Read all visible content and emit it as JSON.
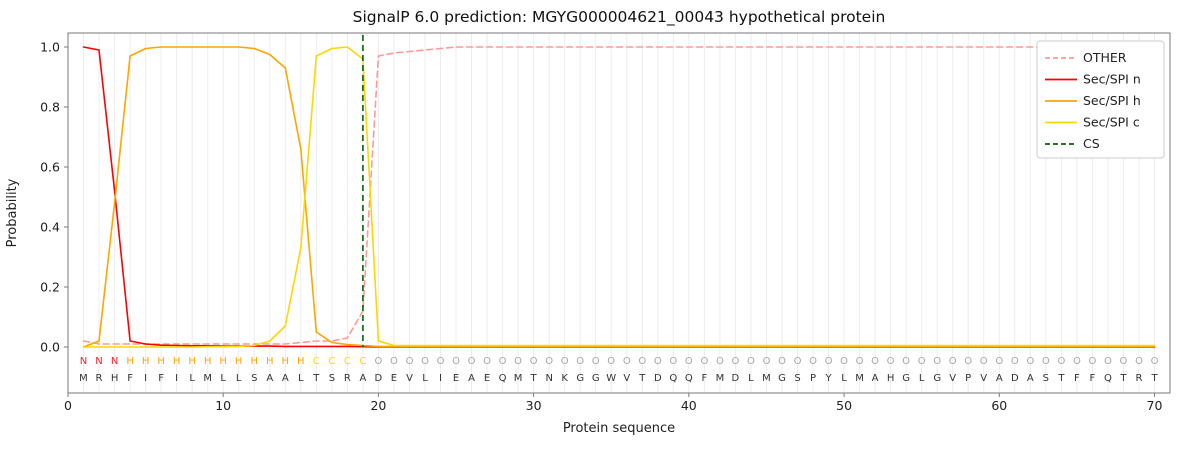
{
  "chart_data": {
    "type": "line",
    "title": "SignalP 6.0 prediction: MGYG000004621_00043 hypothetical protein",
    "xlabel": "Protein sequence",
    "ylabel": "Probability",
    "xlim": [
      0,
      71
    ],
    "ylim": [
      -0.15,
      1.05
    ],
    "xticks": [
      0,
      10,
      20,
      30,
      40,
      50,
      60,
      70
    ],
    "yticks": [
      0.0,
      0.2,
      0.4,
      0.6,
      0.8,
      1.0
    ],
    "grid": "vertical-per-residue",
    "legend_position": "upper right",
    "x": [
      1,
      2,
      3,
      4,
      5,
      6,
      7,
      8,
      9,
      10,
      11,
      12,
      13,
      14,
      15,
      16,
      17,
      18,
      19,
      20,
      21,
      22,
      23,
      24,
      25,
      26,
      27,
      28,
      29,
      30,
      31,
      32,
      33,
      34,
      35,
      36,
      37,
      38,
      39,
      40,
      41,
      42,
      43,
      44,
      45,
      46,
      47,
      48,
      49,
      50,
      51,
      52,
      53,
      54,
      55,
      56,
      57,
      58,
      59,
      60,
      61,
      62,
      63,
      64,
      65,
      66,
      67,
      68,
      69,
      70
    ],
    "series": [
      {
        "name": "OTHER",
        "color": "#ff9999",
        "dash": true,
        "values": [
          0.02,
          0.01,
          0.01,
          0.01,
          0.01,
          0.01,
          0.01,
          0.01,
          0.01,
          0.01,
          0.01,
          0.01,
          0.01,
          0.01,
          0.015,
          0.02,
          0.02,
          0.03,
          0.12,
          0.97,
          0.98,
          0.985,
          0.99,
          0.995,
          1.0,
          1.0,
          1.0,
          1.0,
          1.0,
          1.0,
          1.0,
          1.0,
          1.0,
          1.0,
          1.0,
          1.0,
          1.0,
          1.0,
          1.0,
          1.0,
          1.0,
          1.0,
          1.0,
          1.0,
          1.0,
          1.0,
          1.0,
          1.0,
          1.0,
          1.0,
          1.0,
          1.0,
          1.0,
          1.0,
          1.0,
          1.0,
          1.0,
          1.0,
          1.0,
          1.0,
          1.0,
          1.0,
          1.0,
          1.0,
          1.0,
          1.0,
          1.0,
          1.0,
          1.0,
          1.0
        ]
      },
      {
        "name": "Sec/SPI n",
        "color": "#ff0000",
        "dash": false,
        "values": [
          1.0,
          0.99,
          0.52,
          0.02,
          0.01,
          0.006,
          0.005,
          0.004,
          0.004,
          0.003,
          0.003,
          0.003,
          0.003,
          0.002,
          0.002,
          0.002,
          0.002,
          0.002,
          0.001,
          0.0,
          0.0,
          0.0,
          0.0,
          0.0,
          0.0,
          0.0,
          0.0,
          0.0,
          0.0,
          0.0,
          0.0,
          0.0,
          0.0,
          0.0,
          0.0,
          0.0,
          0.0,
          0.0,
          0.0,
          0.0,
          0.0,
          0.0,
          0.0,
          0.0,
          0.0,
          0.0,
          0.0,
          0.0,
          0.0,
          0.0,
          0.0,
          0.0,
          0.0,
          0.0,
          0.0,
          0.0,
          0.0,
          0.0,
          0.0,
          0.0,
          0.0,
          0.0,
          0.0,
          0.0,
          0.0,
          0.0,
          0.0,
          0.0,
          0.0,
          0.0
        ]
      },
      {
        "name": "Sec/SPI h",
        "color": "#ffa500",
        "dash": false,
        "values": [
          0.0,
          0.02,
          0.48,
          0.97,
          0.995,
          1.0,
          1.0,
          1.0,
          1.0,
          1.0,
          1.0,
          0.995,
          0.975,
          0.93,
          0.66,
          0.05,
          0.015,
          0.008,
          0.005,
          0.002,
          0.002,
          0.002,
          0.002,
          0.002,
          0.002,
          0.002,
          0.002,
          0.002,
          0.002,
          0.002,
          0.002,
          0.002,
          0.002,
          0.002,
          0.002,
          0.002,
          0.002,
          0.002,
          0.002,
          0.002,
          0.002,
          0.002,
          0.002,
          0.002,
          0.002,
          0.002,
          0.002,
          0.002,
          0.002,
          0.002,
          0.002,
          0.002,
          0.002,
          0.002,
          0.002,
          0.002,
          0.002,
          0.002,
          0.002,
          0.002,
          0.002,
          0.002,
          0.002,
          0.002,
          0.002,
          0.002,
          0.002,
          0.002,
          0.002,
          0.002
        ]
      },
      {
        "name": "Sec/SPI c",
        "color": "#ffd700",
        "dash": false,
        "values": [
          0.0,
          0.0,
          0.0,
          0.0,
          0.0,
          0.0,
          0.0,
          0.0,
          0.001,
          0.001,
          0.002,
          0.005,
          0.02,
          0.07,
          0.33,
          0.97,
          0.995,
          1.0,
          0.96,
          0.02,
          0.005,
          0.005,
          0.005,
          0.005,
          0.005,
          0.005,
          0.005,
          0.005,
          0.005,
          0.005,
          0.005,
          0.005,
          0.005,
          0.005,
          0.005,
          0.005,
          0.005,
          0.005,
          0.005,
          0.005,
          0.005,
          0.005,
          0.005,
          0.005,
          0.005,
          0.005,
          0.005,
          0.005,
          0.005,
          0.005,
          0.005,
          0.005,
          0.005,
          0.005,
          0.005,
          0.005,
          0.005,
          0.005,
          0.005,
          0.005,
          0.005,
          0.005,
          0.005,
          0.005,
          0.005,
          0.005,
          0.005,
          0.005,
          0.005,
          0.005
        ]
      }
    ],
    "cs": {
      "name": "CS",
      "position": 19,
      "color": "#006400",
      "dash": true
    },
    "sequence": "MRHFIFILMLLSAALTSRADEVLIEAEQMTNKGGWVTDQQFMDLMGSPYLMAHGLGVPVADASTFFQTRT",
    "label_segments": [
      {
        "letter": "N",
        "count": 3
      },
      {
        "letter": "H",
        "count": 12
      },
      {
        "letter": "C",
        "count": 4
      },
      {
        "letter": "O",
        "count": 51
      }
    ],
    "label_colors": {
      "N": "#ff2020",
      "H": "#ffa500",
      "C": "#ffd700",
      "O": "#a6a6a6"
    },
    "sequence_color": "#333333",
    "grid_color": "#ececec",
    "frame_color": "#7a7a7a"
  }
}
